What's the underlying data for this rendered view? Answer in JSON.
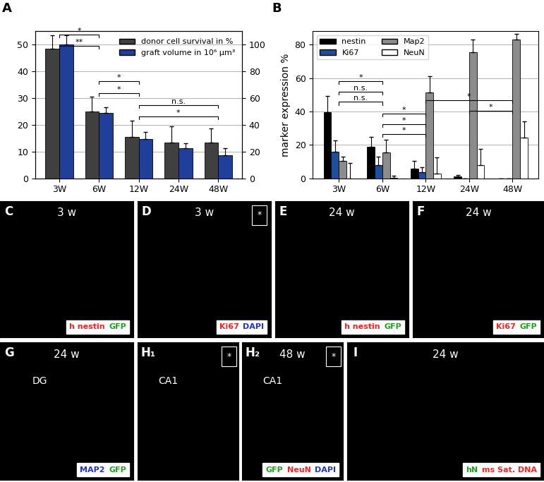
{
  "chart_data": [
    {
      "title": "A",
      "type": "bar",
      "categories": [
        "3W",
        "6W",
        "12W",
        "24W",
        "48W"
      ],
      "ylim": [
        0,
        55
      ],
      "yticks": [
        0,
        10,
        20,
        30,
        40,
        50
      ],
      "y2lim": [
        0,
        110
      ],
      "y2ticks": [
        0,
        20,
        40,
        60,
        80,
        100
      ],
      "grid": true,
      "legend": "upper right",
      "series": [
        {
          "name": "donor cell survival in %",
          "color": "#404040",
          "values": [
            48.5,
            25,
            15.5,
            13.5,
            13.3
          ],
          "errors": [
            5,
            5.5,
            6,
            6,
            5.5
          ]
        },
        {
          "name": "graft volume in 10⁶ µm³",
          "color": "#1f3f9a",
          "axis": "y2",
          "values": [
            100,
            49,
            29.5,
            22.5,
            17.5
          ],
          "errors": [
            7,
            4,
            5,
            4,
            5
          ]
        }
      ],
      "significance": [
        {
          "from": "3W",
          "to": "6W",
          "label": "*"
        },
        {
          "from": "3W",
          "to": "6W",
          "label": "**"
        },
        {
          "from": "6W",
          "to": "12W",
          "label": "*"
        },
        {
          "from": "6W",
          "to": "12W",
          "label": "*"
        },
        {
          "from": "12W",
          "to": "48W",
          "label": "n.s."
        },
        {
          "from": "12W",
          "to": "48W",
          "label": "*"
        }
      ]
    },
    {
      "title": "B",
      "type": "bar",
      "ylabel": "marker expression %",
      "categories": [
        "3W",
        "6W",
        "12W",
        "24W",
        "48W"
      ],
      "ylim": [
        0,
        88
      ],
      "yticks": [
        0,
        20,
        40,
        60,
        80
      ],
      "grid": true,
      "legend": "upper left",
      "series": [
        {
          "name": "nestin",
          "color": "#000000",
          "values": [
            39.5,
            19,
            6,
            1,
            0
          ],
          "errors": [
            10,
            6,
            4.5,
            1,
            0
          ]
        },
        {
          "name": "Ki67",
          "color": "#1f4e9c",
          "values": [
            16,
            8,
            3.5,
            0,
            0
          ],
          "errors": [
            6.5,
            5,
            3,
            0,
            0
          ]
        },
        {
          "name": "Map2",
          "color": "#8c8c8c",
          "values": [
            10.5,
            15.5,
            51.5,
            75.5,
            83
          ],
          "errors": [
            2.5,
            7.5,
            9.5,
            7.5,
            3.5
          ]
        },
        {
          "name": "NeuN",
          "color": "#ffffff",
          "values": [
            0,
            0.5,
            3,
            8,
            24.5
          ],
          "errors": [
            9,
            1,
            9.5,
            9.5,
            9.5
          ]
        }
      ],
      "significance": [
        {
          "from": "3W",
          "to": "6W",
          "label": "*"
        },
        {
          "from": "3W",
          "to": "6W",
          "label": "n.s."
        },
        {
          "from": "3W",
          "to": "6W",
          "label": "n.s."
        },
        {
          "from": "6W",
          "to": "12W",
          "label": "*"
        },
        {
          "from": "6W",
          "to": "12W",
          "label": "*"
        },
        {
          "from": "6W",
          "to": "12W",
          "label": "*"
        },
        {
          "from": "12W",
          "to": "48W",
          "label": "*"
        },
        {
          "from": "24W",
          "to": "48W",
          "label": "*"
        }
      ]
    }
  ],
  "image_panels": [
    {
      "title": "C",
      "time": "3 w",
      "stains": [
        {
          "text": "h nestin",
          "color": "#ff2020"
        },
        {
          "text": "GFP",
          "color": "#1fa01f"
        }
      ]
    },
    {
      "title": "D",
      "time": "3 w",
      "inset": "*",
      "stains": [
        {
          "text": "Ki67",
          "color": "#ff2020"
        },
        {
          "text": "DAPI",
          "color": "#2030e0"
        }
      ]
    },
    {
      "title": "E",
      "time": "24 w",
      "stains": [
        {
          "text": "h nestin",
          "color": "#ff2020"
        },
        {
          "text": "GFP",
          "color": "#1fa01f"
        }
      ]
    },
    {
      "title": "F",
      "time": "24 w",
      "stains": [
        {
          "text": "Ki67",
          "color": "#ff2020"
        },
        {
          "text": "GFP",
          "color": "#1fa01f"
        }
      ]
    },
    {
      "title": "G",
      "time": "24 w",
      "region": "DG",
      "stains": [
        {
          "text": "MAP2",
          "color": "#2030e0"
        },
        {
          "text": "GFP",
          "color": "#1fa01f"
        }
      ]
    },
    {
      "title": "H₁",
      "region": "CA1",
      "inset": "*"
    },
    {
      "title": "H₂",
      "time": "48 w",
      "region": "CA1",
      "inset": "*",
      "stains": [
        {
          "text": "GFP",
          "color": "#1fa01f"
        },
        {
          "text": "NeuN",
          "color": "#ff2020"
        },
        {
          "text": "DAPI",
          "color": "#2030e0"
        }
      ]
    },
    {
      "title": "I",
      "time": "24 w",
      "stains": [
        {
          "text": "hN",
          "color": "#1fa01f"
        },
        {
          "text": "ms Sat. DNA",
          "color": "#ff2020"
        }
      ]
    }
  ]
}
